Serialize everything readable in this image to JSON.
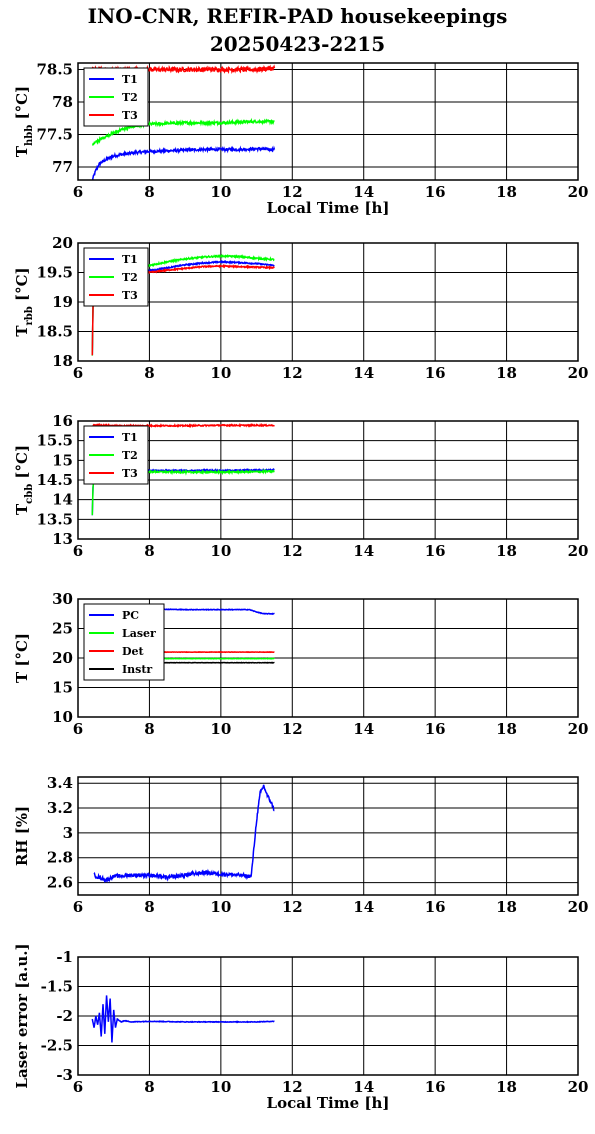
{
  "title_line1": "INO-CNR, REFIR-PAD housekeepings",
  "title_line2": "20250423-2215",
  "chart_data": [
    {
      "type": "line",
      "ylabel_main": "T",
      "ylabel_sub": "hbb",
      "ylabel_unit": "[°C]",
      "xlabel": "Local Time [h]",
      "xlim": [
        6,
        20
      ],
      "ylim": [
        76.8,
        78.6
      ],
      "xticks": [
        "6",
        "8",
        "10",
        "12",
        "14",
        "16",
        "18",
        "20"
      ],
      "yticks": [
        "77",
        "77.5",
        "78",
        "78.5"
      ],
      "ytick_values": [
        77,
        77.5,
        78,
        78.5
      ],
      "grid": true,
      "legend_position": "top-left",
      "series": [
        {
          "name": "T1",
          "color": "#0000ff",
          "x": [
            6.4,
            6.5,
            6.6,
            6.8,
            7.0,
            7.3,
            7.6,
            8.0,
            8.5,
            9.0,
            9.5,
            10.0,
            10.5,
            11.0,
            11.5
          ],
          "values": [
            76.8,
            76.95,
            77.05,
            77.12,
            77.17,
            77.2,
            77.22,
            77.24,
            77.25,
            77.26,
            77.27,
            77.27,
            77.27,
            77.28,
            77.27
          ],
          "noise": 0.02
        },
        {
          "name": "T2",
          "color": "#00ff00",
          "x": [
            6.4,
            6.5,
            6.7,
            6.9,
            7.2,
            7.5,
            8.0,
            8.5,
            9.0,
            9.5,
            10.0,
            10.5,
            11.0,
            11.5
          ],
          "values": [
            77.35,
            77.38,
            77.45,
            77.5,
            77.57,
            77.62,
            77.66,
            77.67,
            77.68,
            77.68,
            77.68,
            77.69,
            77.7,
            77.7
          ],
          "noise": 0.02
        },
        {
          "name": "T3",
          "color": "#ff0000",
          "x": [
            6.4,
            7.0,
            8.0,
            9.0,
            10.0,
            11.0,
            11.5
          ],
          "values": [
            78.5,
            78.5,
            78.5,
            78.5,
            78.5,
            78.5,
            78.52
          ],
          "noise": 0.035
        }
      ]
    },
    {
      "type": "line",
      "ylabel_main": "T",
      "ylabel_sub": "rbb",
      "ylabel_unit": "[°C]",
      "xlabel": "",
      "xlim": [
        6,
        20
      ],
      "ylim": [
        18,
        20
      ],
      "xticks": [
        "6",
        "8",
        "10",
        "12",
        "14",
        "16",
        "18",
        "20"
      ],
      "yticks": [
        "18",
        "18.5",
        "19",
        "19.5",
        "20"
      ],
      "ytick_values": [
        18,
        18.5,
        19,
        19.5,
        20
      ],
      "grid": true,
      "legend_position": "top-left",
      "series": [
        {
          "name": "T1",
          "color": "#0000ff",
          "x": [
            6.4,
            6.42,
            6.45,
            6.5,
            6.7,
            7.0,
            7.5,
            8.0,
            8.5,
            9.0,
            9.5,
            10.0,
            10.5,
            11.0,
            11.5
          ],
          "values": [
            18.1,
            18.9,
            19.2,
            19.3,
            19.38,
            19.45,
            19.5,
            19.53,
            19.58,
            19.63,
            19.66,
            19.68,
            19.67,
            19.65,
            19.62
          ],
          "noise": 0.01
        },
        {
          "name": "T2",
          "color": "#00ff00",
          "x": [
            6.4,
            6.42,
            6.45,
            6.5,
            6.7,
            7.0,
            7.5,
            8.0,
            8.5,
            9.0,
            9.5,
            10.0,
            10.5,
            11.0,
            11.5
          ],
          "values": [
            18.1,
            18.9,
            19.2,
            19.33,
            19.42,
            19.5,
            19.56,
            19.62,
            19.68,
            19.73,
            19.76,
            19.78,
            19.77,
            19.74,
            19.72
          ],
          "noise": 0.012
        },
        {
          "name": "T3",
          "color": "#ff0000",
          "x": [
            6.4,
            6.42,
            6.45,
            6.5,
            6.7,
            7.0,
            7.5,
            8.0,
            8.5,
            9.0,
            9.5,
            10.0,
            10.5,
            11.0,
            11.5
          ],
          "values": [
            18.1,
            18.9,
            19.2,
            19.28,
            19.35,
            19.42,
            19.47,
            19.5,
            19.54,
            19.57,
            19.6,
            19.61,
            19.6,
            19.59,
            19.58
          ],
          "noise": 0.01
        }
      ]
    },
    {
      "type": "line",
      "ylabel_main": "T",
      "ylabel_sub": "cbb",
      "ylabel_unit": "[°C]",
      "xlabel": "",
      "xlim": [
        6,
        20
      ],
      "ylim": [
        13,
        16
      ],
      "xticks": [
        "6",
        "8",
        "10",
        "12",
        "14",
        "16",
        "18",
        "20"
      ],
      "yticks": [
        "13",
        "13.5",
        "14",
        "14.5",
        "15",
        "15.5",
        "16"
      ],
      "ytick_values": [
        13,
        13.5,
        14,
        14.5,
        15,
        15.5,
        16
      ],
      "grid": true,
      "legend_position": "top-left",
      "series": [
        {
          "name": "T1",
          "color": "#0000ff",
          "x": [
            6.4,
            6.42,
            6.45,
            6.5,
            7.0,
            8.0,
            9.0,
            10.0,
            11.0,
            11.5
          ],
          "values": [
            13.6,
            14.3,
            14.6,
            14.72,
            14.75,
            14.74,
            14.74,
            14.74,
            14.75,
            14.76
          ],
          "noise": 0.015
        },
        {
          "name": "T2",
          "color": "#00ff00",
          "x": [
            6.4,
            6.42,
            6.45,
            6.5,
            7.0,
            8.0,
            9.0,
            10.0,
            11.0,
            11.5
          ],
          "values": [
            13.6,
            14.3,
            14.6,
            14.7,
            14.72,
            14.71,
            14.7,
            14.7,
            14.71,
            14.72
          ],
          "noise": 0.02
        },
        {
          "name": "T3",
          "color": "#ff0000",
          "x": [
            6.4,
            6.45,
            7.0,
            8.0,
            9.0,
            10.0,
            11.0,
            11.5
          ],
          "values": [
            15.85,
            15.9,
            15.88,
            15.88,
            15.88,
            15.89,
            15.89,
            15.89
          ],
          "noise": 0.015
        }
      ]
    },
    {
      "type": "line",
      "ylabel_main": "T [°C]",
      "ylabel_sub": "",
      "ylabel_unit": "",
      "xlabel": "",
      "xlim": [
        6,
        20
      ],
      "ylim": [
        10,
        30
      ],
      "xticks": [
        "6",
        "8",
        "10",
        "12",
        "14",
        "16",
        "18",
        "20"
      ],
      "yticks": [
        "10",
        "15",
        "20",
        "25",
        "30"
      ],
      "ytick_values": [
        10,
        15,
        20,
        25,
        30
      ],
      "grid": true,
      "legend_position": "top-left",
      "series": [
        {
          "name": "PC",
          "color": "#0000ff",
          "x": [
            6.4,
            7.0,
            8.0,
            9.0,
            10.0,
            10.8,
            11.0,
            11.2,
            11.5
          ],
          "values": [
            28.3,
            28.3,
            28.3,
            28.2,
            28.2,
            28.2,
            27.8,
            27.5,
            27.5
          ],
          "noise": 0.05
        },
        {
          "name": "Laser",
          "color": "#00ff00",
          "x": [
            6.4,
            7.0,
            8.0,
            9.0,
            10.0,
            11.0,
            11.5
          ],
          "values": [
            19.9,
            19.9,
            19.9,
            19.9,
            19.9,
            19.9,
            19.9
          ],
          "noise": 0.03
        },
        {
          "name": "Det",
          "color": "#ff0000",
          "x": [
            6.4,
            7.0,
            8.0,
            9.0,
            10.0,
            11.0,
            11.5
          ],
          "values": [
            21.0,
            21.0,
            21.0,
            21.0,
            21.0,
            21.0,
            21.0
          ],
          "noise": 0.03
        },
        {
          "name": "Instr",
          "color": "#000000",
          "x": [
            6.4,
            7.0,
            8.0,
            9.0,
            10.0,
            11.0,
            11.5
          ],
          "values": [
            19.2,
            19.2,
            19.2,
            19.2,
            19.2,
            19.2,
            19.2
          ],
          "noise": 0.03
        }
      ]
    },
    {
      "type": "line",
      "ylabel_main": "RH [%]",
      "ylabel_sub": "",
      "ylabel_unit": "",
      "xlabel": "",
      "xlim": [
        6,
        20
      ],
      "ylim": [
        2.5,
        3.45
      ],
      "xticks": [
        "6",
        "8",
        "10",
        "12",
        "14",
        "16",
        "18",
        "20"
      ],
      "yticks": [
        "2.6",
        "2.8",
        "3",
        "3.2",
        "3.4"
      ],
      "ytick_values": [
        2.6,
        2.8,
        3.0,
        3.2,
        3.4
      ],
      "grid": true,
      "legend_position": "none",
      "series": [
        {
          "name": "",
          "color": "#0000ff",
          "x": [
            6.45,
            6.6,
            6.8,
            7.0,
            7.5,
            8.0,
            8.5,
            9.0,
            9.5,
            10.0,
            10.5,
            10.85,
            10.9,
            11.0,
            11.1,
            11.2,
            11.3,
            11.4,
            11.5
          ],
          "values": [
            2.66,
            2.64,
            2.62,
            2.65,
            2.66,
            2.66,
            2.64,
            2.66,
            2.68,
            2.67,
            2.66,
            2.65,
            2.8,
            3.1,
            3.32,
            3.38,
            3.3,
            3.25,
            3.18
          ],
          "noise": 0.015
        }
      ]
    },
    {
      "type": "line",
      "ylabel_main": "Laser error [a.u.]",
      "ylabel_sub": "",
      "ylabel_unit": "",
      "xlabel": "Local Time [h]",
      "xlim": [
        6,
        20
      ],
      "ylim": [
        -3,
        -1
      ],
      "xticks": [
        "6",
        "8",
        "10",
        "12",
        "14",
        "16",
        "18",
        "20"
      ],
      "yticks": [
        "-3",
        "-2.5",
        "-2",
        "-1.5",
        "-1"
      ],
      "ytick_values": [
        -3,
        -2.5,
        -2,
        -1.5,
        -1
      ],
      "grid": true,
      "legend_position": "none",
      "series": [
        {
          "name": "",
          "color": "#0000ff",
          "x": [
            6.4,
            6.45,
            6.5,
            6.55,
            6.6,
            6.65,
            6.7,
            6.75,
            6.8,
            6.85,
            6.9,
            6.95,
            7.0,
            7.05,
            7.1,
            7.2,
            7.3,
            7.5,
            8.0,
            9.0,
            10.0,
            11.0,
            11.5
          ],
          "values": [
            -2.05,
            -2.2,
            -2.0,
            -2.15,
            -1.95,
            -2.35,
            -1.8,
            -2.3,
            -1.65,
            -2.1,
            -1.7,
            -2.45,
            -1.9,
            -2.2,
            -2.05,
            -2.1,
            -2.08,
            -2.1,
            -2.09,
            -2.1,
            -2.1,
            -2.1,
            -2.09
          ],
          "noise": 0.005
        }
      ]
    }
  ]
}
